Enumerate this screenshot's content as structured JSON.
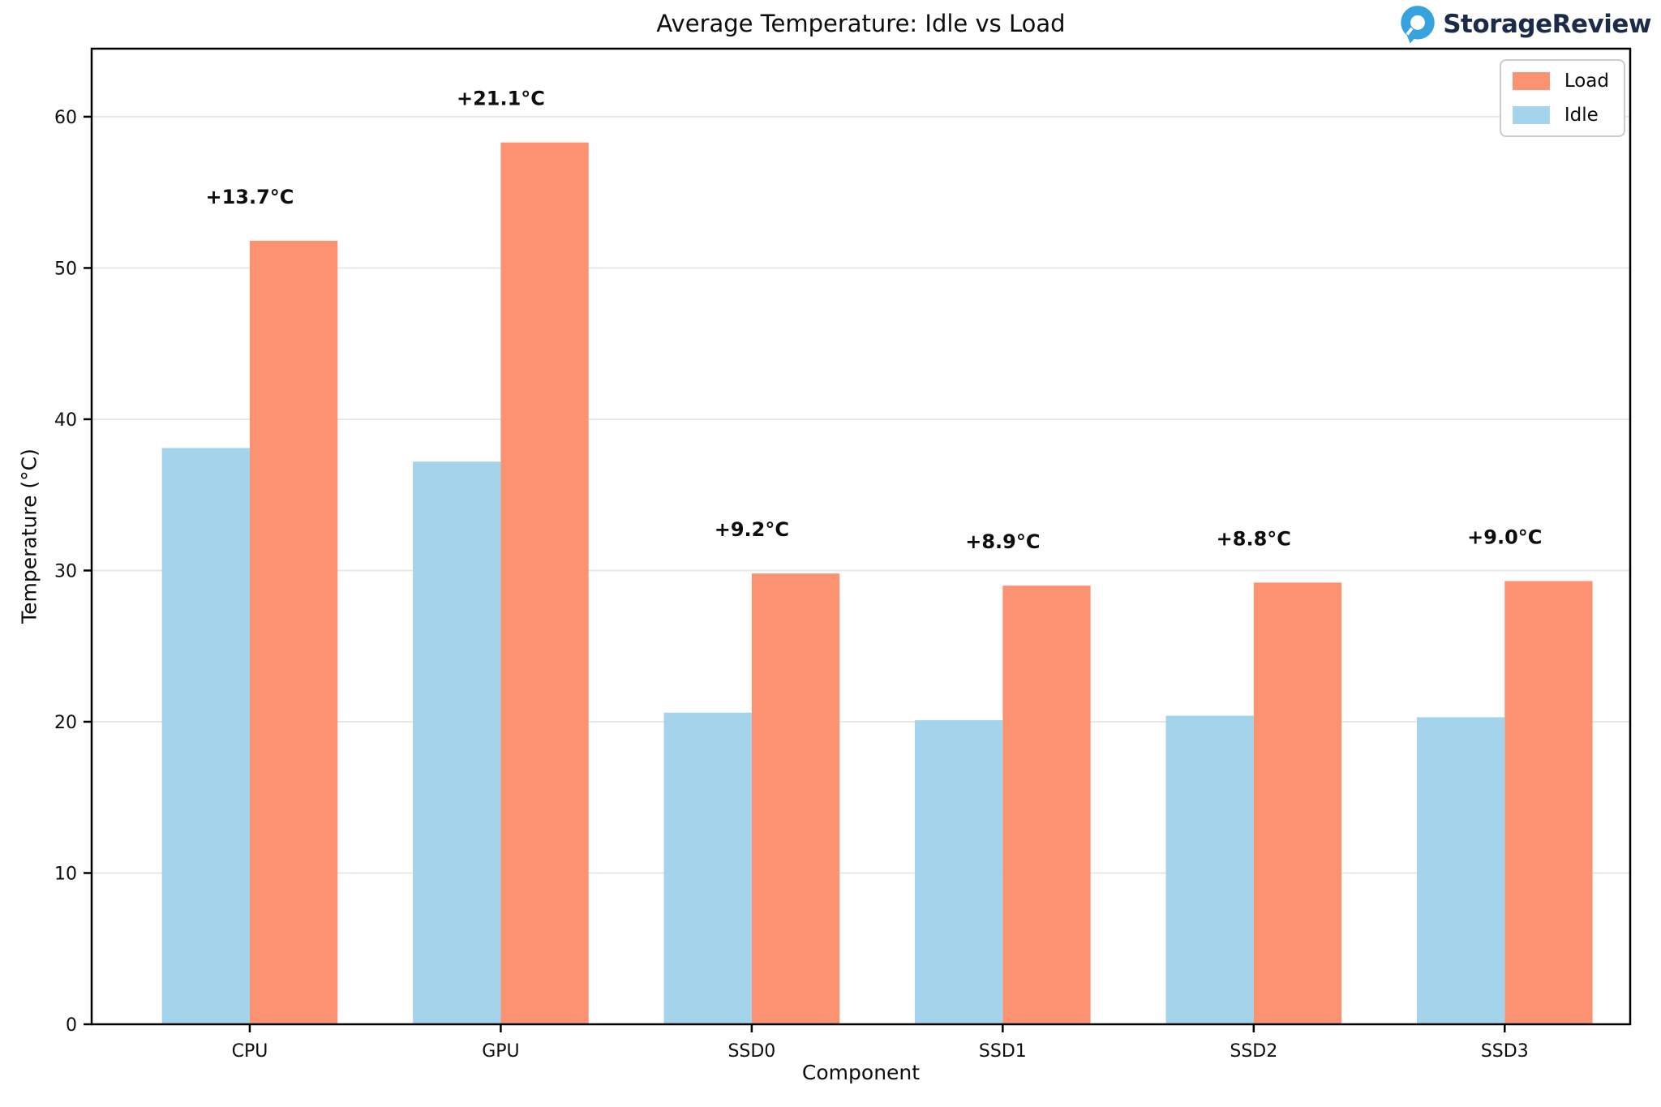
{
  "page": {
    "background": "#ffffff"
  },
  "branding": {
    "logo_text": "StorageReview",
    "logo_text_color": "#1c2b49",
    "logo_icon": "storagereview-pin-icon",
    "logo_icon_color": "#36a3de"
  },
  "legend": {
    "position": "upper right",
    "items": [
      {
        "label": "Load",
        "color": "#FB9373"
      },
      {
        "label": "Idle",
        "color": "#A3D4EB"
      }
    ]
  },
  "chart_data": {
    "type": "bar",
    "title": "Average Temperature: Idle vs Load",
    "xlabel": "Component",
    "ylabel": "Temperature (°C)",
    "categories": [
      "CPU",
      "GPU",
      "SSD0",
      "SSD1",
      "SSD2",
      "SSD3"
    ],
    "series": [
      {
        "name": "Idle",
        "color": "#A3D4EB",
        "values": [
          38.1,
          37.2,
          20.6,
          20.1,
          20.4,
          20.3
        ]
      },
      {
        "name": "Load",
        "color": "#FB9373",
        "values": [
          51.8,
          58.3,
          29.8,
          29.0,
          29.2,
          29.3
        ]
      }
    ],
    "annotations": [
      "+13.7°C",
      "+21.1°C",
      "+9.2°C",
      "+8.9°C",
      "+8.8°C",
      "+9.0°C"
    ],
    "yticks": [
      0,
      10,
      20,
      30,
      40,
      50,
      60
    ],
    "ylim": [
      0,
      64.5
    ],
    "xlim": [
      -0.63,
      5.5
    ],
    "bar_width": 0.35,
    "grid": "horizontal",
    "grid_color": "#e7e7e7",
    "spine_color": "#000000",
    "annotation_style": "bold"
  }
}
